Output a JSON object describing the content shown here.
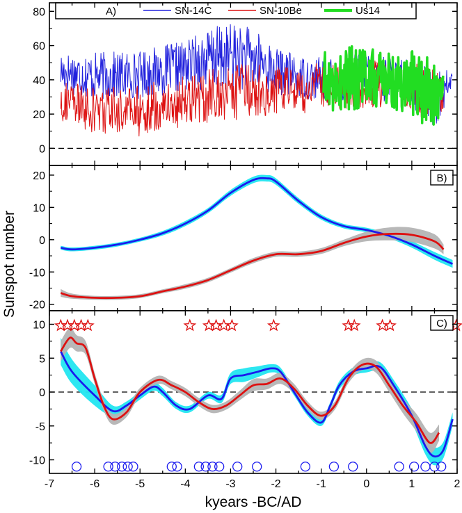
{
  "figure": {
    "ylabel": "Sunspot number",
    "xlabel": "kyears -BC/AD",
    "x_ticks": [
      "-7",
      "-6",
      "-5",
      "-4",
      "-3",
      "-2",
      "-1",
      "0",
      "1",
      "2"
    ]
  },
  "chart_data": [
    {
      "panel": "A",
      "tag": "A)",
      "type": "line",
      "ylim": [
        -10,
        85
      ],
      "y_ticks": [
        "0",
        "20",
        "40",
        "60",
        "80"
      ],
      "zero_line": true,
      "legend": [
        "SN-14C",
        "SN-10Be",
        "Us14"
      ],
      "series": [
        {
          "name": "SN-14C",
          "color": "#2222dd",
          "x_range": [
            -6.75,
            1.9
          ],
          "envelope_x": [
            -6.75,
            -6,
            -5,
            -4,
            -3.5,
            -3,
            -2.5,
            -2,
            -1.5,
            -1,
            -0.5,
            0,
            0.5,
            1,
            1.5,
            1.9
          ],
          "envelope_mid": [
            45,
            42,
            43,
            48,
            52,
            54,
            52,
            45,
            42,
            40,
            40,
            42,
            40,
            38,
            28,
            40
          ],
          "envelope_amp": [
            12,
            14,
            14,
            15,
            18,
            20,
            18,
            14,
            12,
            14,
            14,
            14,
            14,
            14,
            18,
            6
          ]
        },
        {
          "name": "SN-10Be",
          "color": "#dd1111",
          "x_range": [
            -6.75,
            1.7
          ],
          "envelope_x": [
            -6.75,
            -6,
            -5,
            -4,
            -3.5,
            -3,
            -2.5,
            -2,
            -1.5,
            -1,
            -0.5,
            0,
            0.5,
            1,
            1.5,
            1.7
          ],
          "envelope_mid": [
            28,
            22,
            22,
            28,
            30,
            32,
            34,
            34,
            34,
            36,
            36,
            38,
            38,
            36,
            30,
            30
          ],
          "envelope_amp": [
            12,
            14,
            15,
            15,
            16,
            16,
            16,
            14,
            14,
            14,
            14,
            14,
            14,
            14,
            18,
            10
          ]
        },
        {
          "name": "Us14",
          "color": "#22dd22",
          "x_range": [
            -0.95,
            1.7
          ],
          "envelope_x": [
            -0.95,
            -0.5,
            0,
            0.5,
            1,
            1.5,
            1.7
          ],
          "envelope_mid": [
            38,
            40,
            42,
            40,
            40,
            30,
            32
          ],
          "envelope_amp": [
            18,
            20,
            18,
            18,
            20,
            22,
            10
          ]
        }
      ]
    },
    {
      "panel": "B",
      "tag": "B)",
      "type": "line",
      "ylim": [
        -22,
        23
      ],
      "y_ticks": [
        "-20",
        "-10",
        "0",
        "10",
        "20"
      ],
      "zero_line": false,
      "series": [
        {
          "color": "#1a1aee",
          "band_color": "#22e6f0",
          "x": [
            -6.75,
            -6.5,
            -6,
            -5.5,
            -5,
            -4.5,
            -4,
            -3.5,
            -3,
            -2.5,
            -2.2,
            -2,
            -1.5,
            -1,
            -0.5,
            0,
            0.5,
            1,
            1.5,
            1.9
          ],
          "y": [
            -2.5,
            -3,
            -2.5,
            -1.5,
            0,
            2,
            5,
            9,
            14.5,
            18.5,
            19,
            18,
            12,
            7,
            4.2,
            3,
            1.2,
            -1.5,
            -5,
            -7.5
          ],
          "band": [
            0.6,
            0.6,
            0.6,
            0.6,
            0.6,
            0.7,
            0.8,
            0.8,
            0.9,
            1.0,
            1.0,
            1.0,
            0.9,
            0.8,
            0.7,
            0.7,
            0.8,
            1.0,
            1.2,
            1.2
          ]
        },
        {
          "color": "#dd1111",
          "band_color": "#b4b4b4",
          "x": [
            -6.75,
            -6.5,
            -6,
            -5.5,
            -5,
            -4.5,
            -4,
            -3.5,
            -3,
            -2.5,
            -2,
            -1.5,
            -1,
            -0.5,
            0,
            0.5,
            1,
            1.5,
            1.7
          ],
          "y": [
            -16.5,
            -17.5,
            -18,
            -18,
            -17.5,
            -16,
            -14.5,
            -12.5,
            -9.5,
            -6.5,
            -4.5,
            -4.5,
            -3.5,
            -1,
            1,
            1.8,
            1.5,
            -0.5,
            -3
          ],
          "band": [
            1.2,
            0.8,
            0.6,
            0.6,
            0.6,
            0.6,
            0.7,
            0.7,
            0.7,
            0.8,
            0.8,
            0.8,
            0.9,
            1.0,
            1.5,
            2.0,
            2.2,
            2.2,
            1.5
          ]
        }
      ]
    },
    {
      "panel": "C",
      "tag": "C)",
      "type": "line",
      "ylim": [
        -12,
        12
      ],
      "y_ticks": [
        "-10",
        "-5",
        "0",
        "5",
        "10"
      ],
      "zero_line": true,
      "series": [
        {
          "color": "#1a1aee",
          "band_color": "#22e6f0",
          "x": [
            -6.75,
            -6.5,
            -6,
            -5.6,
            -5.3,
            -5,
            -4.7,
            -4.5,
            -4.2,
            -3.9,
            -3.5,
            -3.2,
            -3,
            -2.7,
            -2.4,
            -2.1,
            -1.9,
            -1.6,
            -1.3,
            -1,
            -0.8,
            -0.6,
            -0.3,
            0,
            0.3,
            0.6,
            1,
            1.3,
            1.5,
            1.7,
            1.9
          ],
          "y": [
            6,
            3,
            -0.5,
            -2.8,
            -2,
            -0.5,
            0.8,
            0,
            -2,
            -2.5,
            -0.5,
            -1,
            2,
            2.5,
            3,
            3.5,
            3,
            0,
            -3,
            -4.5,
            -2,
            1,
            3,
            3.5,
            3.7,
            1,
            -3.5,
            -8,
            -9.5,
            -8.5,
            -4
          ],
          "band": [
            2,
            1.8,
            1.5,
            0.8,
            0.6,
            0.6,
            0.6,
            0.6,
            0.5,
            0.5,
            0.5,
            0.6,
            0.8,
            1.0,
            0.8,
            0.6,
            0.6,
            0.5,
            0.5,
            0.5,
            0.5,
            0.6,
            0.6,
            0.6,
            0.7,
            0.8,
            1.0,
            1.2,
            1.3,
            1.2,
            1.0
          ]
        },
        {
          "color": "#dd1111",
          "band_color": "#b4b4b4",
          "x": [
            -6.75,
            -6.55,
            -6.4,
            -6.2,
            -6,
            -5.8,
            -5.6,
            -5.3,
            -5,
            -4.6,
            -4.3,
            -4,
            -3.7,
            -3.4,
            -3.1,
            -2.8,
            -2.5,
            -2.2,
            -1.9,
            -1.6,
            -1.3,
            -1,
            -0.7,
            -0.4,
            -0.1,
            0.2,
            0.5,
            0.8,
            1.1,
            1.4,
            1.6
          ],
          "y": [
            6,
            8,
            7.2,
            6.5,
            2,
            -2,
            -4,
            -3,
            0,
            1.8,
            1,
            0,
            -1.5,
            -2.5,
            -2,
            -0.5,
            1,
            1.2,
            2,
            0.5,
            -2,
            -3.5,
            -2,
            2,
            4,
            3.8,
            1,
            -2,
            -4.5,
            -7.5,
            -6
          ],
          "band": [
            1.5,
            1.5,
            1.2,
            1.0,
            0.8,
            0.8,
            0.8,
            0.7,
            0.6,
            0.6,
            0.6,
            0.6,
            0.6,
            0.6,
            0.6,
            0.7,
            0.9,
            0.8,
            0.8,
            0.7,
            0.6,
            0.6,
            0.6,
            0.7,
            0.8,
            0.9,
            1.0,
            1.1,
            1.3,
            1.5,
            1.2
          ]
        }
      ],
      "maxima_stars": {
        "color": "#dd1111",
        "y": 9.8,
        "x": [
          -6.75,
          -6.6,
          -6.45,
          -6.3,
          -6.15,
          -3.9,
          -3.48,
          -3.32,
          -3.15,
          -2.97,
          -2.05,
          -0.4,
          -0.27,
          0.35,
          0.52,
          1.98
        ]
      },
      "minima_circles": {
        "color": "#1a1aee",
        "y": -11,
        "x": [
          -6.4,
          -5.7,
          -5.55,
          -5.4,
          -5.27,
          -5.15,
          -4.3,
          -4.18,
          -3.7,
          -3.55,
          -3.4,
          -3.25,
          -2.85,
          -2.42,
          -1.35,
          -0.72,
          -0.3,
          0.72,
          1.05,
          1.3,
          1.5,
          1.65
        ]
      }
    }
  ]
}
